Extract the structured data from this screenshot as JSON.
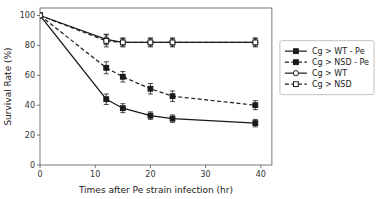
{
  "chart_data": {
    "type": "line",
    "xlabel": "Times after Pe strain infection (hr)",
    "ylabel": "Survival Rate (%)",
    "x": [
      0,
      12,
      15,
      20,
      24,
      39
    ],
    "xlim": [
      0,
      42
    ],
    "ylim": [
      0,
      105
    ],
    "xticks": [
      0,
      10,
      20,
      30,
      40
    ],
    "yticks": [
      0,
      20,
      40,
      60,
      80,
      100
    ],
    "grid": false,
    "legend": "right",
    "series": [
      {
        "name": "Cg > WT - Pe",
        "color": "#1a1a1a",
        "line_style": "solid",
        "marker": "square",
        "values": [
          100,
          44,
          38,
          33,
          31,
          28
        ],
        "yerr": [
          0,
          3.5,
          3,
          2.5,
          2.5,
          2.5
        ]
      },
      {
        "name": "Cg > NSD - Pe",
        "color": "#1a1a1a",
        "line_style": "dashed",
        "marker": "square",
        "values": [
          100,
          65,
          59,
          51,
          46,
          40
        ],
        "yerr": [
          0,
          4,
          3.5,
          3.5,
          3.5,
          3
        ]
      },
      {
        "name": "Cg > WT",
        "color": "#1a1a1a",
        "line_style": "solid",
        "marker": "circle-open",
        "values": [
          100,
          84,
          82,
          82,
          82,
          82
        ],
        "yerr": [
          0,
          3.5,
          2.5,
          2.5,
          2.5,
          2.5
        ]
      },
      {
        "name": "Cg > NSD",
        "color": "#1a1a1a",
        "line_style": "dashed",
        "marker": "square-open",
        "values": [
          100,
          83,
          82,
          82,
          82,
          82
        ],
        "yerr": [
          0,
          4,
          3,
          3,
          3,
          3
        ]
      }
    ]
  }
}
